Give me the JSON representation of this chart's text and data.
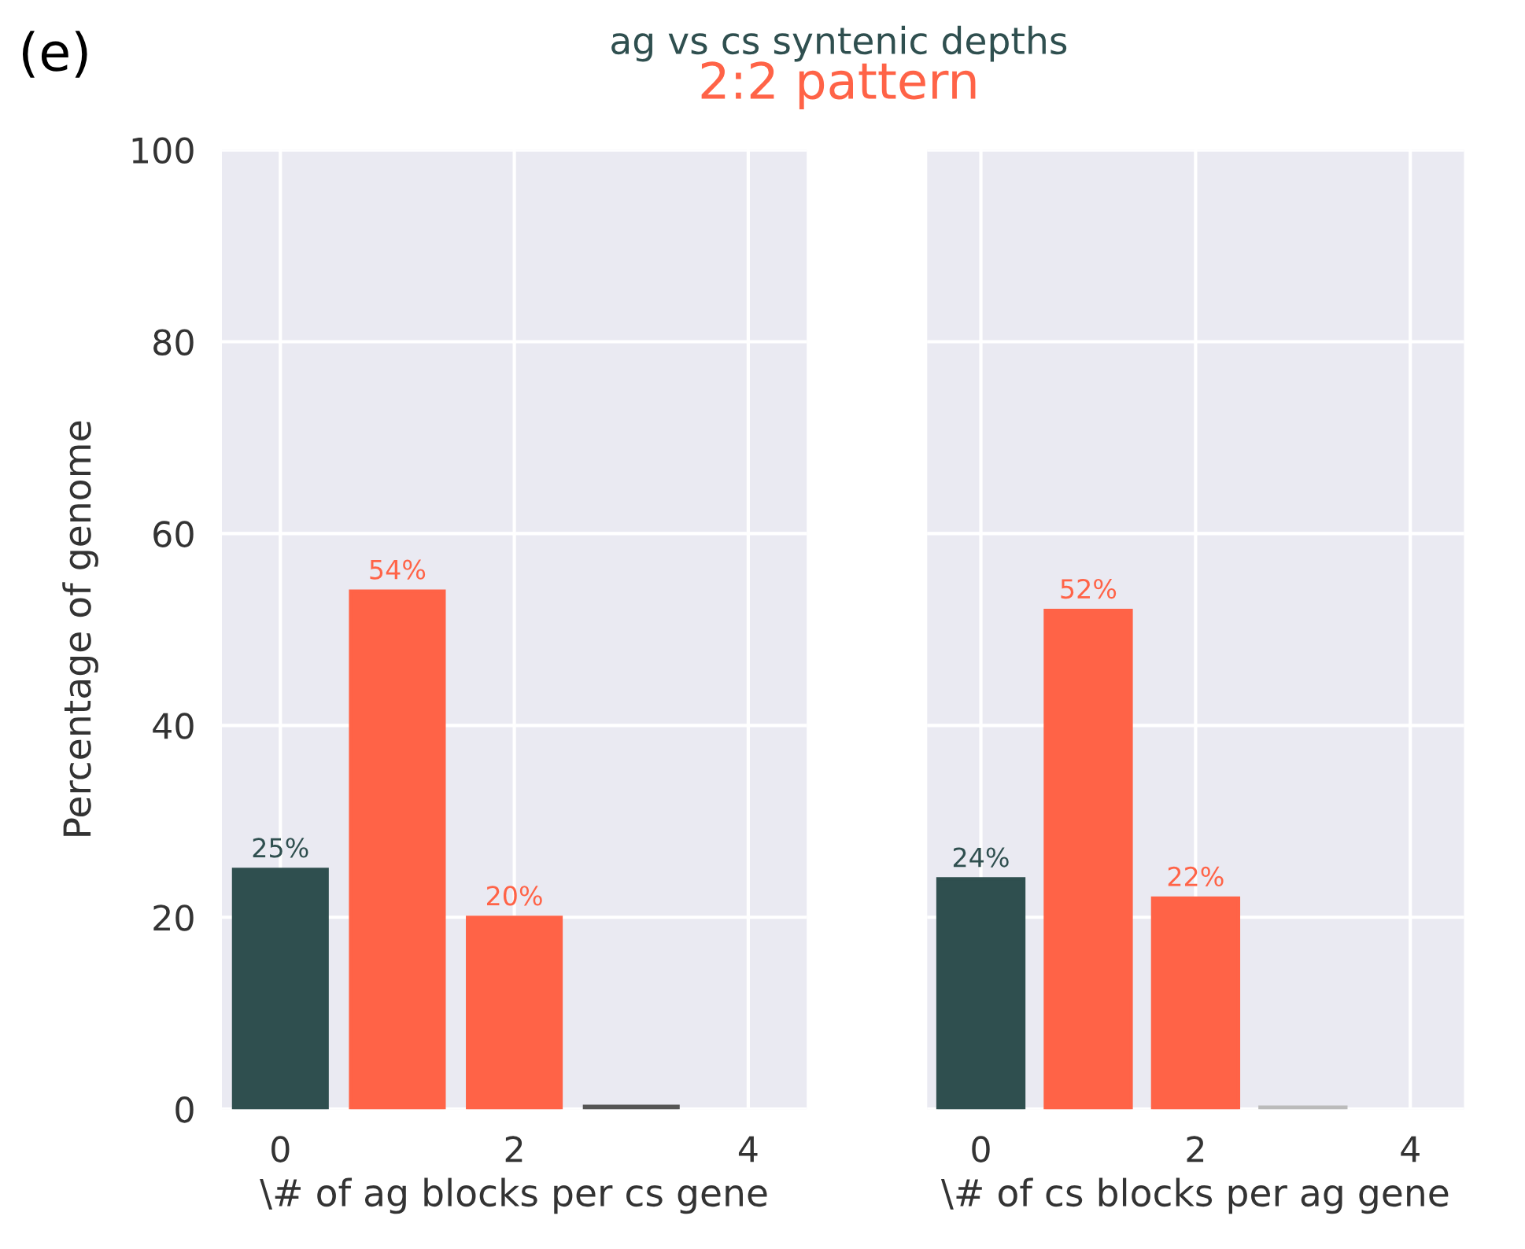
{
  "chart_data": [
    {
      "type": "bar",
      "title": "ag vs cs syntenic depths",
      "subtitle": "2:2 pattern",
      "annotations": [
        "(e)"
      ],
      "xlabel": "\\# of ag blocks per cs gene",
      "ylabel": "Percentage of genome",
      "x": [
        0,
        1,
        2,
        3
      ],
      "values": [
        25,
        54,
        20,
        0.3
      ],
      "colors": [
        "#2f4f4f",
        "#ff6347",
        "#ff6347",
        "#555555"
      ],
      "value_labels": [
        "25%",
        "54%",
        "20%",
        null
      ],
      "xlim": [
        -0.5,
        4.5
      ],
      "xticks": [
        0,
        2,
        4
      ],
      "ylim": [
        0,
        100
      ],
      "yticks": [
        0,
        20,
        40,
        60,
        80,
        100
      ],
      "grid": true
    },
    {
      "type": "bar",
      "xlabel": "\\# of cs blocks per ag gene",
      "x": [
        0,
        1,
        2,
        3
      ],
      "values": [
        24,
        52,
        22,
        0.2
      ],
      "colors": [
        "#2f4f4f",
        "#ff6347",
        "#ff6347",
        "#bbbbbb"
      ],
      "value_labels": [
        "24%",
        "52%",
        "22%",
        null
      ],
      "xlim": [
        -0.5,
        4.5
      ],
      "xticks": [
        0,
        2,
        4
      ],
      "ylim": [
        0,
        100
      ],
      "yticks": [
        0,
        20,
        40,
        60,
        80,
        100
      ],
      "grid": true,
      "tick_labels": "x"
    }
  ]
}
